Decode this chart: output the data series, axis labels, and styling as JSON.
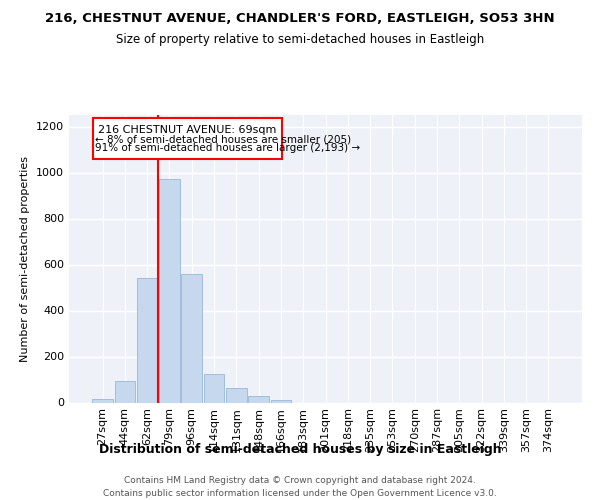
{
  "title_line1": "216, CHESTNUT AVENUE, CHANDLER'S FORD, EASTLEIGH, SO53 3HN",
  "title_line2": "Size of property relative to semi-detached houses in Eastleigh",
  "xlabel": "Distribution of semi-detached houses by size in Eastleigh",
  "ylabel": "Number of semi-detached properties",
  "categories": [
    "27sqm",
    "44sqm",
    "62sqm",
    "79sqm",
    "96sqm",
    "114sqm",
    "131sqm",
    "148sqm",
    "166sqm",
    "183sqm",
    "201sqm",
    "218sqm",
    "235sqm",
    "253sqm",
    "270sqm",
    "287sqm",
    "305sqm",
    "322sqm",
    "339sqm",
    "357sqm",
    "374sqm"
  ],
  "values": [
    15,
    95,
    540,
    970,
    560,
    125,
    62,
    28,
    10,
    0,
    0,
    0,
    0,
    0,
    0,
    0,
    0,
    0,
    0,
    0,
    0
  ],
  "bar_color": "#c5d8ee",
  "bar_edge_color": "#a0bedd",
  "ann_label": "216 CHESTNUT AVENUE: 69sqm",
  "ann_smaller": "← 8% of semi-detached houses are smaller (205)",
  "ann_larger": "91% of semi-detached houses are larger (2,193) →",
  "red_line_x": 2.5,
  "ylim": [
    0,
    1250
  ],
  "yticks": [
    0,
    200,
    400,
    600,
    800,
    1000,
    1200
  ],
  "footer_line1": "Contains HM Land Registry data © Crown copyright and database right 2024.",
  "footer_line2": "Contains public sector information licensed under the Open Government Licence v3.0.",
  "bg_color": "#eef2f8"
}
